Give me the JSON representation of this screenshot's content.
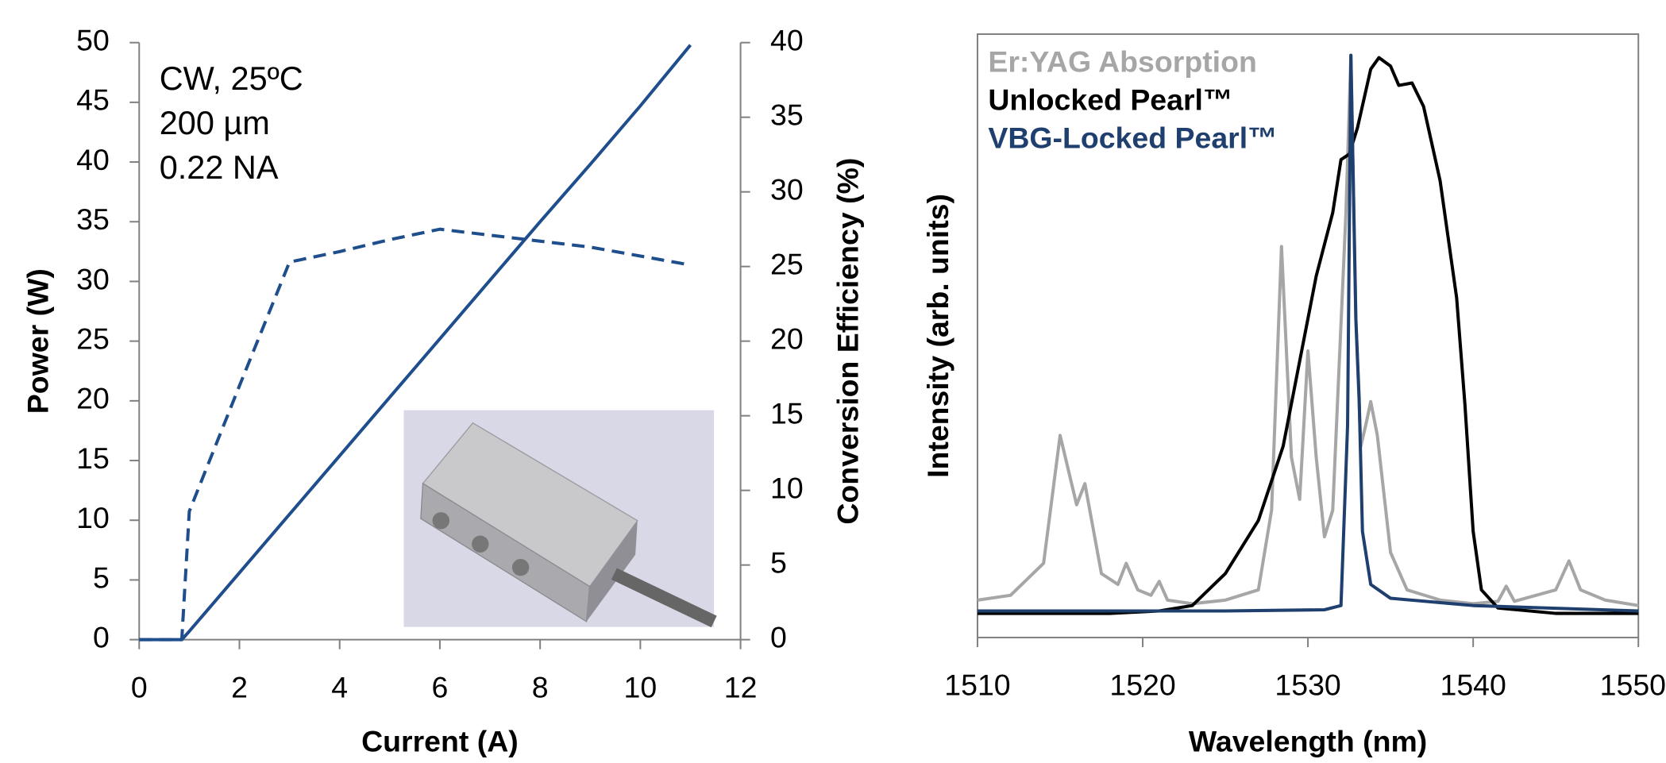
{
  "chart_data": [
    {
      "type": "line",
      "xlabel": "Current (A)",
      "ylabel": "Power (W)",
      "y2label": "Conversion Efficiency (%)",
      "annotations": [
        "CW, 25ºC",
        "200 µm",
        "0.22 NA"
      ],
      "x": [
        0,
        0.85,
        1,
        2,
        3,
        4,
        5,
        6,
        7,
        8,
        9,
        10,
        11
      ],
      "series": [
        {
          "color": "#1f4e8c",
          "line_style": "solid",
          "values": [
            0,
            0,
            0.7,
            5.6,
            10.5,
            15.4,
            20.3,
            25.2,
            30.1,
            35,
            39.8,
            44.7,
            49.8
          ]
        },
        {
          "color": "#1f4e8c",
          "line_style": "dashed",
          "axis": "y2",
          "values": [
            0,
            0,
            8.6,
            17,
            25.3,
            26,
            26.8,
            27.5,
            27.1,
            26.7,
            26.3,
            25.7,
            25.1
          ]
        }
      ],
      "xlim": [
        0,
        12
      ],
      "xticks": [
        0,
        2,
        4,
        6,
        8,
        10,
        12
      ],
      "ylim": [
        0,
        50
      ],
      "yticks": [
        0,
        5,
        10,
        15,
        20,
        25,
        30,
        35,
        40,
        45,
        50
      ],
      "y2lim": [
        0,
        40
      ],
      "y2ticks": [
        0,
        5,
        10,
        15,
        20,
        25,
        30,
        35,
        40
      ]
    },
    {
      "type": "line",
      "xlabel": "Wavelength (nm)",
      "ylabel": "Intensity (arb. units)",
      "series": [
        {
          "name": "Er:YAG Absorption",
          "color": "#a6a6a6",
          "line_style": "solid",
          "x": [
            1510,
            1512,
            1514,
            1515,
            1516,
            1516.5,
            1517.5,
            1518.5,
            1519,
            1519.7,
            1520.5,
            1521,
            1521.5,
            1523,
            1525,
            1527,
            1527.8,
            1528.4,
            1529,
            1529.5,
            1530,
            1530.5,
            1531,
            1531.5,
            1532.3,
            1532.6,
            1532.9,
            1533.2,
            1533.5,
            1533.8,
            1534.2,
            1535,
            1536,
            1538,
            1540,
            1541.5,
            1542,
            1542.5,
            1545,
            1545.8,
            1546.5,
            1548,
            1550
          ],
          "values": [
            0.062,
            0.07,
            0.123,
            0.335,
            0.22,
            0.255,
            0.106,
            0.088,
            0.123,
            0.079,
            0.07,
            0.093,
            0.062,
            0.056,
            0.062,
            0.079,
            0.211,
            0.648,
            0.299,
            0.229,
            0.475,
            0.299,
            0.167,
            0.211,
            0.704,
            0.965,
            0.528,
            0.317,
            0.352,
            0.391,
            0.335,
            0.141,
            0.079,
            0.062,
            0.056,
            0.06,
            0.085,
            0.06,
            0.079,
            0.127,
            0.079,
            0.062,
            0.053
          ]
        },
        {
          "name": "Unlocked Pearl™",
          "color": "#000000",
          "line_style": "solid",
          "x": [
            1510,
            1518,
            1521,
            1523,
            1525,
            1527,
            1528.5,
            1529.5,
            1530.5,
            1531.5,
            1532,
            1532.5,
            1533,
            1533.8,
            1534.3,
            1535,
            1535.5,
            1536.3,
            1537,
            1538,
            1539,
            1539.5,
            1540,
            1540.5,
            1541.5,
            1545,
            1550
          ],
          "values": [
            0.04,
            0.04,
            0.044,
            0.053,
            0.106,
            0.194,
            0.317,
            0.458,
            0.599,
            0.704,
            0.792,
            0.801,
            0.845,
            0.942,
            0.961,
            0.947,
            0.915,
            0.919,
            0.88,
            0.757,
            0.563,
            0.387,
            0.176,
            0.079,
            0.049,
            0.04,
            0.04
          ]
        },
        {
          "name": "VBG-Locked Pearl™",
          "color": "#1f3f6e",
          "line_style": "solid",
          "x": [
            1510,
            1525,
            1531,
            1532,
            1532.4,
            1532.6,
            1532.9,
            1533.1,
            1533.3,
            1533.8,
            1535,
            1540,
            1550
          ],
          "values": [
            0.044,
            0.044,
            0.046,
            0.053,
            0.352,
            0.965,
            0.528,
            0.396,
            0.176,
            0.088,
            0.065,
            0.053,
            0.044
          ]
        }
      ],
      "xlim": [
        1510,
        1550
      ],
      "xticks": [
        1510,
        1520,
        1530,
        1540,
        1550
      ],
      "ylim": [
        0,
        1
      ]
    }
  ]
}
